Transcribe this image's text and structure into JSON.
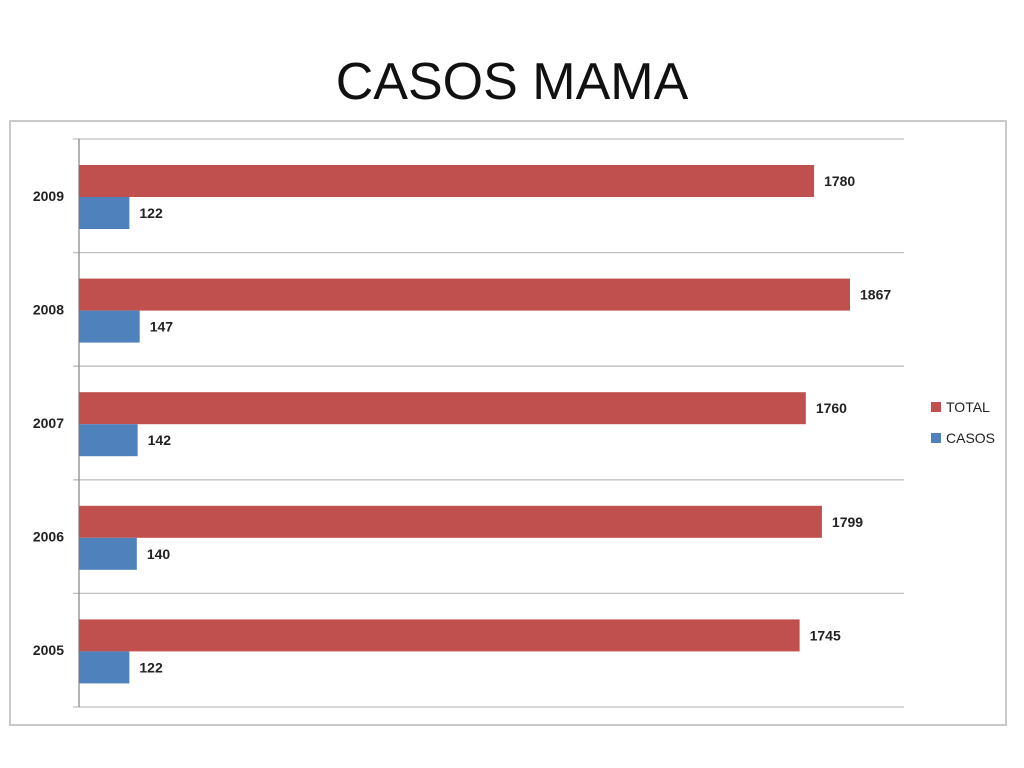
{
  "slide": {
    "title": "CASOS MAMA"
  },
  "chart_data": {
    "type": "bar",
    "orientation": "horizontal",
    "categories": [
      "2005",
      "2006",
      "2007",
      "2008",
      "2009"
    ],
    "series": [
      {
        "name": "TOTAL",
        "color": "#c0504d",
        "values": [
          1745,
          1799,
          1760,
          1867,
          1780
        ]
      },
      {
        "name": "CASOS",
        "color": "#4f81bd",
        "values": [
          122,
          140,
          142,
          147,
          122
        ]
      }
    ],
    "xlim": [
      0,
      2000
    ],
    "grid": true,
    "legend_position": "right",
    "data_labels": true
  }
}
